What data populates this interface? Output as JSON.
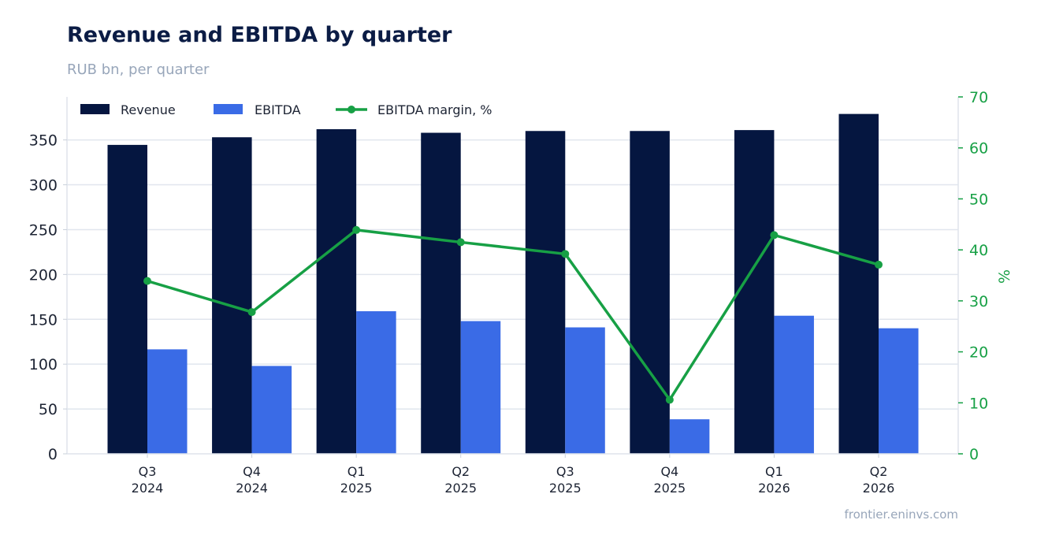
{
  "chart_data": {
    "type": "bar",
    "title": "Revenue and EBITDA by quarter",
    "subtitle": "RUB bn, per quarter",
    "categories": [
      [
        "Q3",
        "2024"
      ],
      [
        "Q4",
        "2024"
      ],
      [
        "Q1",
        "2025"
      ],
      [
        "Q2",
        "2025"
      ],
      [
        "Q3",
        "2025"
      ],
      [
        "Q4",
        "2025"
      ],
      [
        "Q1",
        "2026"
      ],
      [
        "Q2",
        "2026"
      ]
    ],
    "series": [
      {
        "name": "Revenue",
        "kind": "bar",
        "axis": "left",
        "color": "#051640",
        "values": [
          344.5,
          353,
          362,
          358,
          360,
          360,
          361,
          379
        ]
      },
      {
        "name": "EBITDA",
        "kind": "bar",
        "axis": "left",
        "color": "#3a6be6",
        "values": [
          116.5,
          98,
          159,
          148,
          141,
          38.5,
          154,
          140
        ]
      },
      {
        "name": "EBITDA margin, %",
        "kind": "line",
        "axis": "right",
        "color": "#17a045",
        "values": [
          33.9,
          27.8,
          43.9,
          41.5,
          39.2,
          10.6,
          42.9,
          37.1
        ]
      }
    ],
    "y_left": {
      "label": "",
      "lim": [
        0,
        398
      ],
      "ticks": [
        "0",
        "50",
        "100",
        "150",
        "200",
        "250",
        "300",
        "350"
      ],
      "tick_values": [
        0,
        50,
        100,
        150,
        200,
        250,
        300,
        350
      ]
    },
    "y_right": {
      "label": "%",
      "lim": [
        0,
        70
      ],
      "ticks": [
        "0",
        "10",
        "20",
        "30",
        "40",
        "50",
        "60",
        "70"
      ],
      "tick_values": [
        0,
        10,
        20,
        30,
        40,
        50,
        60,
        70
      ],
      "color": "#17a045"
    },
    "grid": "horizontal",
    "legend_position": "top-left",
    "source": "frontier.eninvs.com"
  },
  "colors": {
    "title": "#0b1c45",
    "subtitle": "#98a6ba",
    "text": "#1c2333",
    "grid": "#e1e6ee",
    "source": "#98a6ba"
  }
}
